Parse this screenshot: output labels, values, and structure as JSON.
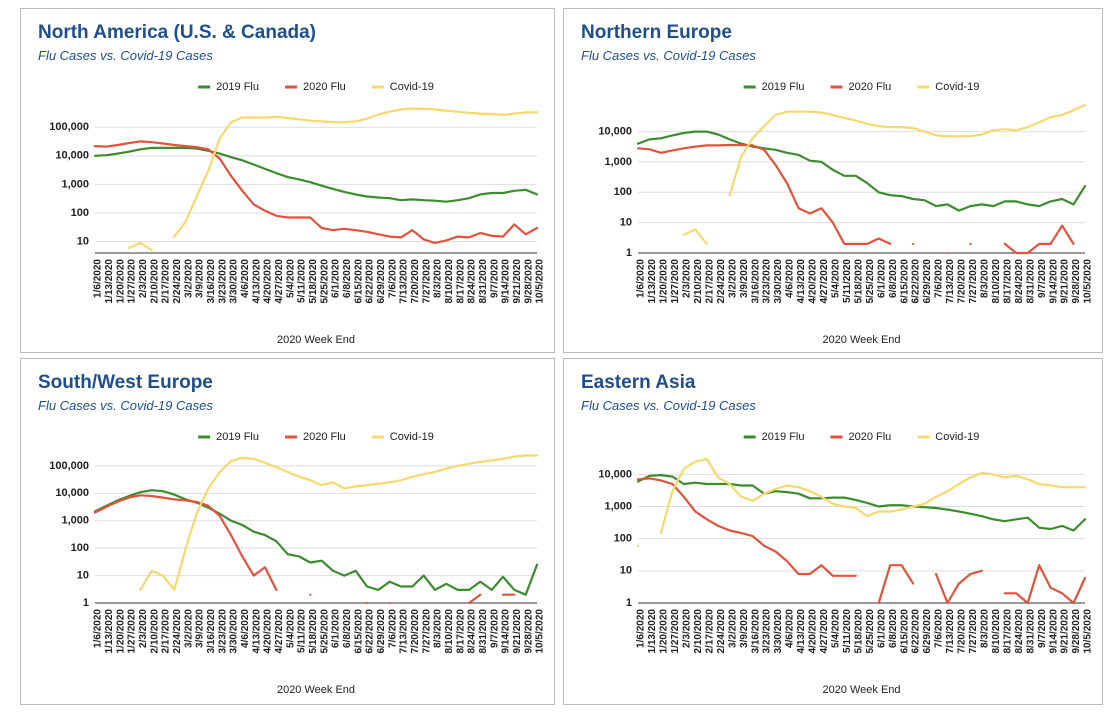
{
  "chart_data": [
    {
      "type": "line",
      "title": "North America (U.S. & Canada)",
      "subtitle": "Flu Cases vs. Covid-19 Cases",
      "x_label": "2020 Week End",
      "log_scale": true,
      "grid": true,
      "legend": "top",
      "categories": [
        "1/6/2020",
        "1/13/2020",
        "1/20/2020",
        "1/27/2020",
        "2/3/2020",
        "2/10/2020",
        "2/17/2020",
        "2/24/2020",
        "3/2/2020",
        "3/9/2020",
        "3/16/2020",
        "3/23/2020",
        "3/30/2020",
        "4/6/2020",
        "4/13/2020",
        "4/20/2020",
        "4/27/2020",
        "5/4/2020",
        "5/11/2020",
        "5/18/2020",
        "5/25/2020",
        "6/1/2020",
        "6/8/2020",
        "6/15/2020",
        "6/22/2020",
        "6/29/2020",
        "7/6/2020",
        "7/13/2020",
        "7/20/2020",
        "7/27/2020",
        "8/3/2020",
        "8/10/2020",
        "8/17/2020",
        "8/24/2020",
        "8/31/2020",
        "9/7/2020",
        "9/14/2020",
        "9/21/2020",
        "9/28/2020",
        "10/5/2020"
      ],
      "ylim": [
        4,
        600000
      ],
      "yticks": [
        10,
        100,
        {
          "value": 1000,
          "label": "1,000"
        },
        {
          "value": 10000,
          "label": "10,000"
        },
        {
          "value": 100000,
          "label": "100,000"
        }
      ],
      "series": [
        {
          "name": "2019 Flu",
          "color": "#3d8b2f",
          "values": [
            10000,
            10500,
            12000,
            14000,
            17000,
            19000,
            19000,
            19000,
            19000,
            18000,
            15000,
            12000,
            9000,
            7000,
            5000,
            3500,
            2500,
            1800,
            1500,
            1200,
            900,
            700,
            550,
            450,
            380,
            350,
            330,
            280,
            300,
            280,
            270,
            250,
            280,
            330,
            450,
            500,
            500,
            600,
            650,
            450
          ]
        },
        {
          "name": "2020 Flu",
          "color": "#e0533c",
          "values": [
            22000,
            21000,
            24000,
            28000,
            32000,
            30000,
            27000,
            24000,
            22000,
            20000,
            17000,
            8000,
            2000,
            600,
            200,
            120,
            80,
            70,
            70,
            70,
            30,
            25,
            28,
            25,
            22,
            18,
            15,
            14,
            25,
            12,
            9,
            11,
            15,
            14,
            20,
            16,
            15,
            40,
            18,
            30
          ]
        },
        {
          "name": "Covid-19",
          "color": "#f6d86f",
          "values": [
            null,
            null,
            null,
            6,
            9,
            5,
            null,
            15,
            50,
            400,
            3000,
            40000,
            150000,
            220000,
            220000,
            220000,
            230000,
            210000,
            190000,
            170000,
            160000,
            150000,
            150000,
            160000,
            200000,
            280000,
            350000,
            420000,
            450000,
            440000,
            420000,
            380000,
            350000,
            320000,
            300000,
            290000,
            270000,
            300000,
            330000,
            330000
          ]
        }
      ]
    },
    {
      "type": "line",
      "title": "Northern Europe",
      "subtitle": "Flu Cases vs. Covid-19 Cases",
      "x_label": "2020 Week End",
      "log_scale": true,
      "grid": true,
      "legend": "top",
      "categories": [
        "1/6/2020",
        "1/13/2020",
        "1/20/2020",
        "1/27/2020",
        "2/3/2020",
        "2/10/2020",
        "2/17/2020",
        "2/24/2020",
        "3/2/2020",
        "3/9/2020",
        "3/16/2020",
        "3/23/2020",
        "3/30/2020",
        "4/6/2020",
        "4/13/2020",
        "4/20/2020",
        "4/27/2020",
        "5/4/2020",
        "5/11/2020",
        "5/18/2020",
        "5/25/2020",
        "6/1/2020",
        "6/8/2020",
        "6/15/2020",
        "6/22/2020",
        "6/29/2020",
        "7/6/2020",
        "7/13/2020",
        "7/20/2020",
        "7/27/2020",
        "8/3/2020",
        "8/10/2020",
        "8/17/2020",
        "8/24/2020",
        "8/31/2020",
        "9/7/2020",
        "9/14/2020",
        "9/21/2020",
        "9/28/2020",
        "10/5/2020"
      ],
      "ylim": [
        1,
        75000
      ],
      "yticks": [
        1,
        10,
        100,
        {
          "value": 1000,
          "label": "1,000"
        },
        {
          "value": 10000,
          "label": "10,000"
        }
      ],
      "series": [
        {
          "name": "2019 Flu",
          "color": "#3d8b2f",
          "values": [
            4000,
            5500,
            6000,
            7500,
            9000,
            10000,
            10000,
            8000,
            5500,
            4000,
            3200,
            2800,
            2500,
            2000,
            1700,
            1100,
            1000,
            550,
            350,
            350,
            200,
            100,
            80,
            75,
            60,
            55,
            35,
            40,
            25,
            35,
            40,
            35,
            50,
            50,
            40,
            35,
            50,
            60,
            40,
            160
          ]
        },
        {
          "name": "2020 Flu",
          "color": "#e0533c",
          "values": [
            2800,
            2600,
            2000,
            2400,
            2800,
            3200,
            3500,
            3500,
            3600,
            3600,
            3500,
            2500,
            800,
            200,
            30,
            20,
            30,
            10,
            2,
            2,
            2,
            3,
            2,
            null,
            2,
            null,
            null,
            1,
            null,
            2,
            null,
            null,
            2,
            1,
            1,
            2,
            2,
            8,
            2,
            null
          ]
        },
        {
          "name": "Covid-19",
          "color": "#f6d86f",
          "values": [
            null,
            null,
            null,
            null,
            4,
            6,
            2,
            null,
            80,
            1500,
            6000,
            15000,
            35000,
            45000,
            45000,
            45000,
            42000,
            35000,
            28000,
            23000,
            18000,
            15000,
            14000,
            14000,
            13000,
            10000,
            7500,
            7000,
            7000,
            7000,
            8000,
            11000,
            12000,
            11000,
            14000,
            20000,
            30000,
            35000,
            50000,
            75000
          ]
        }
      ]
    },
    {
      "type": "line",
      "title": "South/West Europe",
      "subtitle": "Flu Cases vs. Covid-19 Cases",
      "x_label": "2020 Week End",
      "log_scale": true,
      "grid": true,
      "legend": "top",
      "categories": [
        "1/6/2020",
        "1/13/2020",
        "1/20/2020",
        "1/27/2020",
        "2/3/2020",
        "2/10/2020",
        "2/17/2020",
        "2/24/2020",
        "3/2/2020",
        "3/9/2020",
        "3/16/2020",
        "3/23/2020",
        "3/30/2020",
        "4/6/2020",
        "4/13/2020",
        "4/20/2020",
        "4/27/2020",
        "5/4/2020",
        "5/11/2020",
        "5/18/2020",
        "5/25/2020",
        "6/1/2020",
        "6/8/2020",
        "6/15/2020",
        "6/22/2020",
        "6/29/2020",
        "7/6/2020",
        "7/13/2020",
        "7/20/2020",
        "7/27/2020",
        "8/3/2020",
        "8/10/2020",
        "8/17/2020",
        "8/24/2020",
        "8/31/2020",
        "9/7/2020",
        "9/14/2020",
        "9/21/2020",
        "9/28/2020",
        "10/5/2020"
      ],
      "ylim": [
        1,
        250000
      ],
      "yticks": [
        1,
        10,
        100,
        {
          "value": 1000,
          "label": "1,000"
        },
        {
          "value": 10000,
          "label": "10,000"
        },
        {
          "value": 100000,
          "label": "100,000"
        }
      ],
      "series": [
        {
          "name": "2019 Flu",
          "color": "#3d8b2f",
          "values": [
            2200,
            3500,
            5500,
            8000,
            11000,
            13000,
            12000,
            9000,
            6000,
            4500,
            3000,
            1800,
            1000,
            700,
            400,
            300,
            180,
            60,
            50,
            30,
            35,
            15,
            10,
            15,
            4,
            3,
            6,
            4,
            4,
            10,
            3,
            5,
            3,
            3,
            6,
            3,
            9,
            3,
            2,
            25
          ]
        },
        {
          "name": "2020 Flu",
          "color": "#e0533c",
          "values": [
            2000,
            3200,
            5000,
            7000,
            8500,
            8000,
            7000,
            6000,
            5500,
            4800,
            3500,
            1500,
            300,
            50,
            10,
            20,
            3,
            null,
            null,
            2,
            null,
            null,
            null,
            null,
            1,
            null,
            1,
            null,
            null,
            null,
            null,
            null,
            null,
            1,
            2,
            null,
            2,
            2,
            null,
            null
          ]
        },
        {
          "name": "Covid-19",
          "color": "#f6d86f",
          "values": [
            null,
            null,
            null,
            null,
            3,
            15,
            10,
            3,
            100,
            2000,
            15000,
            60000,
            150000,
            200000,
            180000,
            130000,
            90000,
            60000,
            40000,
            30000,
            20000,
            25000,
            15000,
            18000,
            20000,
            22000,
            25000,
            30000,
            40000,
            50000,
            60000,
            80000,
            100000,
            120000,
            140000,
            160000,
            180000,
            220000,
            240000,
            240000
          ]
        }
      ]
    },
    {
      "type": "line",
      "title": "Eastern Asia",
      "subtitle": "Flu Cases vs. Covid-19 Cases",
      "x_label": "2020 Week End",
      "log_scale": true,
      "grid": true,
      "legend": "top",
      "categories": [
        "1/6/2020",
        "1/13/2020",
        "1/20/2020",
        "1/27/2020",
        "2/3/2020",
        "2/10/2020",
        "2/17/2020",
        "2/24/2020",
        "3/2/2020",
        "3/9/2020",
        "3/16/2020",
        "3/23/2020",
        "3/30/2020",
        "4/6/2020",
        "4/13/2020",
        "4/20/2020",
        "4/27/2020",
        "5/4/2020",
        "5/11/2020",
        "5/18/2020",
        "5/25/2020",
        "6/1/2020",
        "6/8/2020",
        "6/15/2020",
        "6/22/2020",
        "6/29/2020",
        "7/6/2020",
        "7/13/2020",
        "7/20/2020",
        "7/27/2020",
        "8/3/2020",
        "8/10/2020",
        "8/17/2020",
        "8/24/2020",
        "8/31/2020",
        "9/7/2020",
        "9/14/2020",
        "9/21/2020",
        "9/28/2020",
        "10/5/2020"
      ],
      "ylim": [
        1,
        40000
      ],
      "yticks": [
        1,
        10,
        100,
        {
          "value": 1000,
          "label": "1,000"
        },
        {
          "value": 10000,
          "label": "10,000"
        }
      ],
      "series": [
        {
          "name": "2019 Flu",
          "color": "#3d8b2f",
          "values": [
            6000,
            9000,
            9500,
            8500,
            5000,
            5500,
            5000,
            5000,
            5000,
            4500,
            4500,
            2500,
            3000,
            2800,
            2500,
            1800,
            1800,
            1900,
            1900,
            1600,
            1300,
            1000,
            1100,
            1100,
            1000,
            950,
            900,
            800,
            700,
            600,
            500,
            400,
            350,
            400,
            450,
            220,
            200,
            250,
            180,
            400
          ]
        },
        {
          "name": "2020 Flu",
          "color": "#e0533c",
          "values": [
            7000,
            7500,
            6500,
            5000,
            2000,
            700,
            400,
            250,
            180,
            150,
            120,
            60,
            40,
            20,
            8,
            8,
            15,
            7,
            7,
            7,
            null,
            1,
            15,
            15,
            4,
            null,
            8,
            1,
            4,
            8,
            10,
            null,
            2,
            2,
            1,
            15,
            3,
            2,
            1,
            6
          ]
        },
        {
          "name": "Covid-19",
          "color": "#f6d86f",
          "values": [
            60,
            null,
            150,
            3000,
            15000,
            25000,
            30000,
            8000,
            5000,
            2000,
            1500,
            2500,
            3500,
            4500,
            4000,
            3000,
            2000,
            1200,
            1000,
            900,
            500,
            700,
            700,
            800,
            1000,
            1200,
            2000,
            3000,
            5000,
            8000,
            11000,
            10000,
            8000,
            9000,
            7000,
            5000,
            4500,
            4000,
            4000,
            4000
          ]
        }
      ]
    }
  ]
}
